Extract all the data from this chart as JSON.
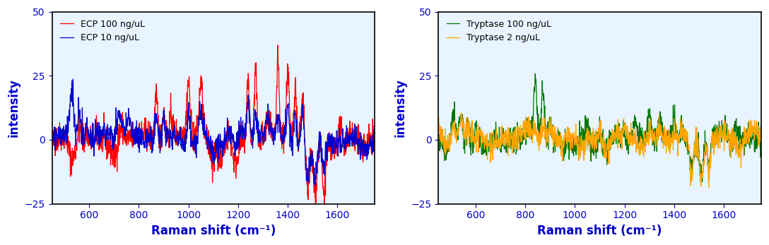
{
  "xlim": [
    450,
    1750
  ],
  "ylim": [
    -25,
    50
  ],
  "yticks": [
    -25,
    0,
    25,
    50
  ],
  "xticks": [
    600,
    800,
    1000,
    1200,
    1400,
    1600
  ],
  "xlabel": "Raman shift (cm⁻¹)",
  "ylabel": "intensity",
  "ecp_legend": [
    "ECP 100 ng/uL",
    "ECP 10 ng/uL"
  ],
  "tryptase_legend": [
    "Tryptase 100 ng/uL",
    "Tryptase 2 ng/uL"
  ],
  "ecp_colors": [
    "#ff0000",
    "#0000cc"
  ],
  "tryptase_colors": [
    "#007700",
    "#ffa500"
  ],
  "label_color": "#0000cc",
  "tick_color": "#0000cc",
  "bg_color": "#e8f4ff",
  "linewidth": 0.9,
  "seed": 42
}
